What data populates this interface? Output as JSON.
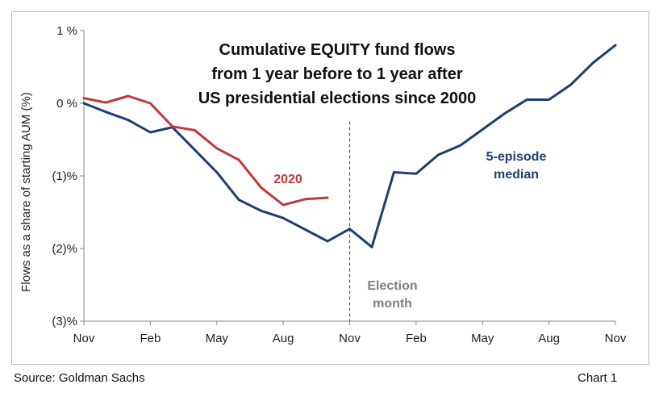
{
  "chart_data": {
    "type": "line",
    "title": [
      "Cumulative EQUITY fund flows",
      "from 1 year before to 1 year after",
      "US presidential elections since 2000"
    ],
    "ylabel": "Flows as a share of starting AUM (%)",
    "ylim": [
      -3,
      1
    ],
    "yticks": [
      {
        "value": 1,
        "label": "1 %"
      },
      {
        "value": 0,
        "label": "0 %"
      },
      {
        "value": -1,
        "label": "(1)%"
      },
      {
        "value": -2,
        "label": "(2)%"
      },
      {
        "value": -3,
        "label": "(3)%"
      }
    ],
    "xlim": [
      0,
      24
    ],
    "xticks": [
      {
        "value": 0,
        "label": "Nov"
      },
      {
        "value": 3,
        "label": "Feb"
      },
      {
        "value": 6,
        "label": "May"
      },
      {
        "value": 9,
        "label": "Aug"
      },
      {
        "value": 12,
        "label": "Nov"
      },
      {
        "value": 15,
        "label": "Feb"
      },
      {
        "value": 18,
        "label": "May"
      },
      {
        "value": 21,
        "label": "Aug"
      },
      {
        "value": 24,
        "label": "Nov"
      }
    ],
    "series": [
      {
        "name": "5-episode median",
        "label_lines": [
          "5-episode",
          "median"
        ],
        "color": "#1f3e6e",
        "x": [
          0,
          1,
          2,
          3,
          4,
          5,
          6,
          7,
          8,
          9,
          10,
          11,
          12,
          13,
          14,
          15,
          16,
          17,
          18,
          19,
          20,
          21,
          22,
          23,
          24
        ],
        "y": [
          0,
          -0.12,
          -0.23,
          -0.4,
          -0.33,
          -0.64,
          -0.95,
          -1.33,
          -1.48,
          -1.58,
          -1.74,
          -1.9,
          -1.73,
          -1.98,
          -0.95,
          -0.97,
          -0.71,
          -0.58,
          -0.36,
          -0.14,
          0.05,
          0.05,
          0.26,
          0.56,
          0.8
        ]
      },
      {
        "name": "2020",
        "label_lines": [
          "2020"
        ],
        "color": "#c0393b",
        "x": [
          0,
          1,
          2,
          3,
          4,
          5,
          6,
          7,
          8,
          9,
          10,
          11
        ],
        "y": [
          0.07,
          0.01,
          0.1,
          0,
          -0.32,
          -0.37,
          -0.62,
          -0.78,
          -1.16,
          -1.4,
          -1.32,
          -1.3
        ]
      }
    ],
    "annotations": [
      {
        "type": "vline",
        "x": 12,
        "label_lines": [
          "Election",
          "month"
        ],
        "color": "#7f7f7f"
      }
    ],
    "grid": false,
    "legend": "none"
  },
  "footer": {
    "source": "Source: Goldman Sachs",
    "chart_number": "Chart 1"
  }
}
